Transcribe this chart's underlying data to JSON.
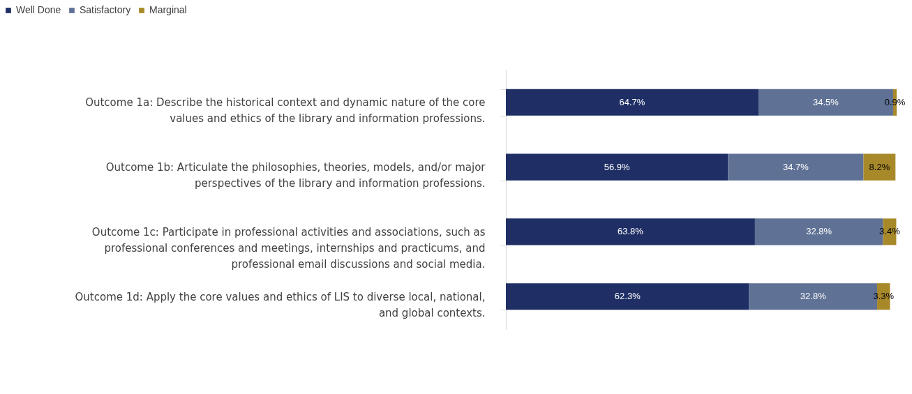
{
  "chart_data": {
    "type": "bar",
    "orientation": "horizontal",
    "stacked": true,
    "legend": "top left",
    "tick_labels": "y",
    "grid": false,
    "categories": [
      "Outcome 1a: Describe the historical context and dynamic nature of the core values and ethics of the library and information professions.",
      "Outcome 1b: Articulate the philosophies, theories, models, and/or major perspectives of the library and information professions.",
      "Outcome 1c: Participate in professional activities and associations, such as professional conferences and meetings, internships and practicums, and professional email discussions and social media.",
      "Outcome 1d: Apply the core values and ethics of LIS to diverse local, national, and global contexts."
    ],
    "series": [
      {
        "name": "Well Done",
        "color": "#1f2f66",
        "values": [
          64.7,
          56.9,
          63.8,
          62.3
        ],
        "value_labels": [
          "64.7%",
          "56.9%",
          "63.8%",
          "62.3%"
        ]
      },
      {
        "name": "Satisfactory",
        "color": "#5f7195",
        "values": [
          34.5,
          34.7,
          32.8,
          32.8
        ],
        "value_labels": [
          "34.5%",
          "34.7%",
          "32.8%",
          "32.8%"
        ]
      },
      {
        "name": "Marginal",
        "color": "#a8892a",
        "values": [
          0.9,
          8.2,
          3.4,
          3.3
        ],
        "value_labels": [
          "0.9%",
          "8.2%",
          "3.4%",
          "3.3%"
        ]
      }
    ]
  }
}
